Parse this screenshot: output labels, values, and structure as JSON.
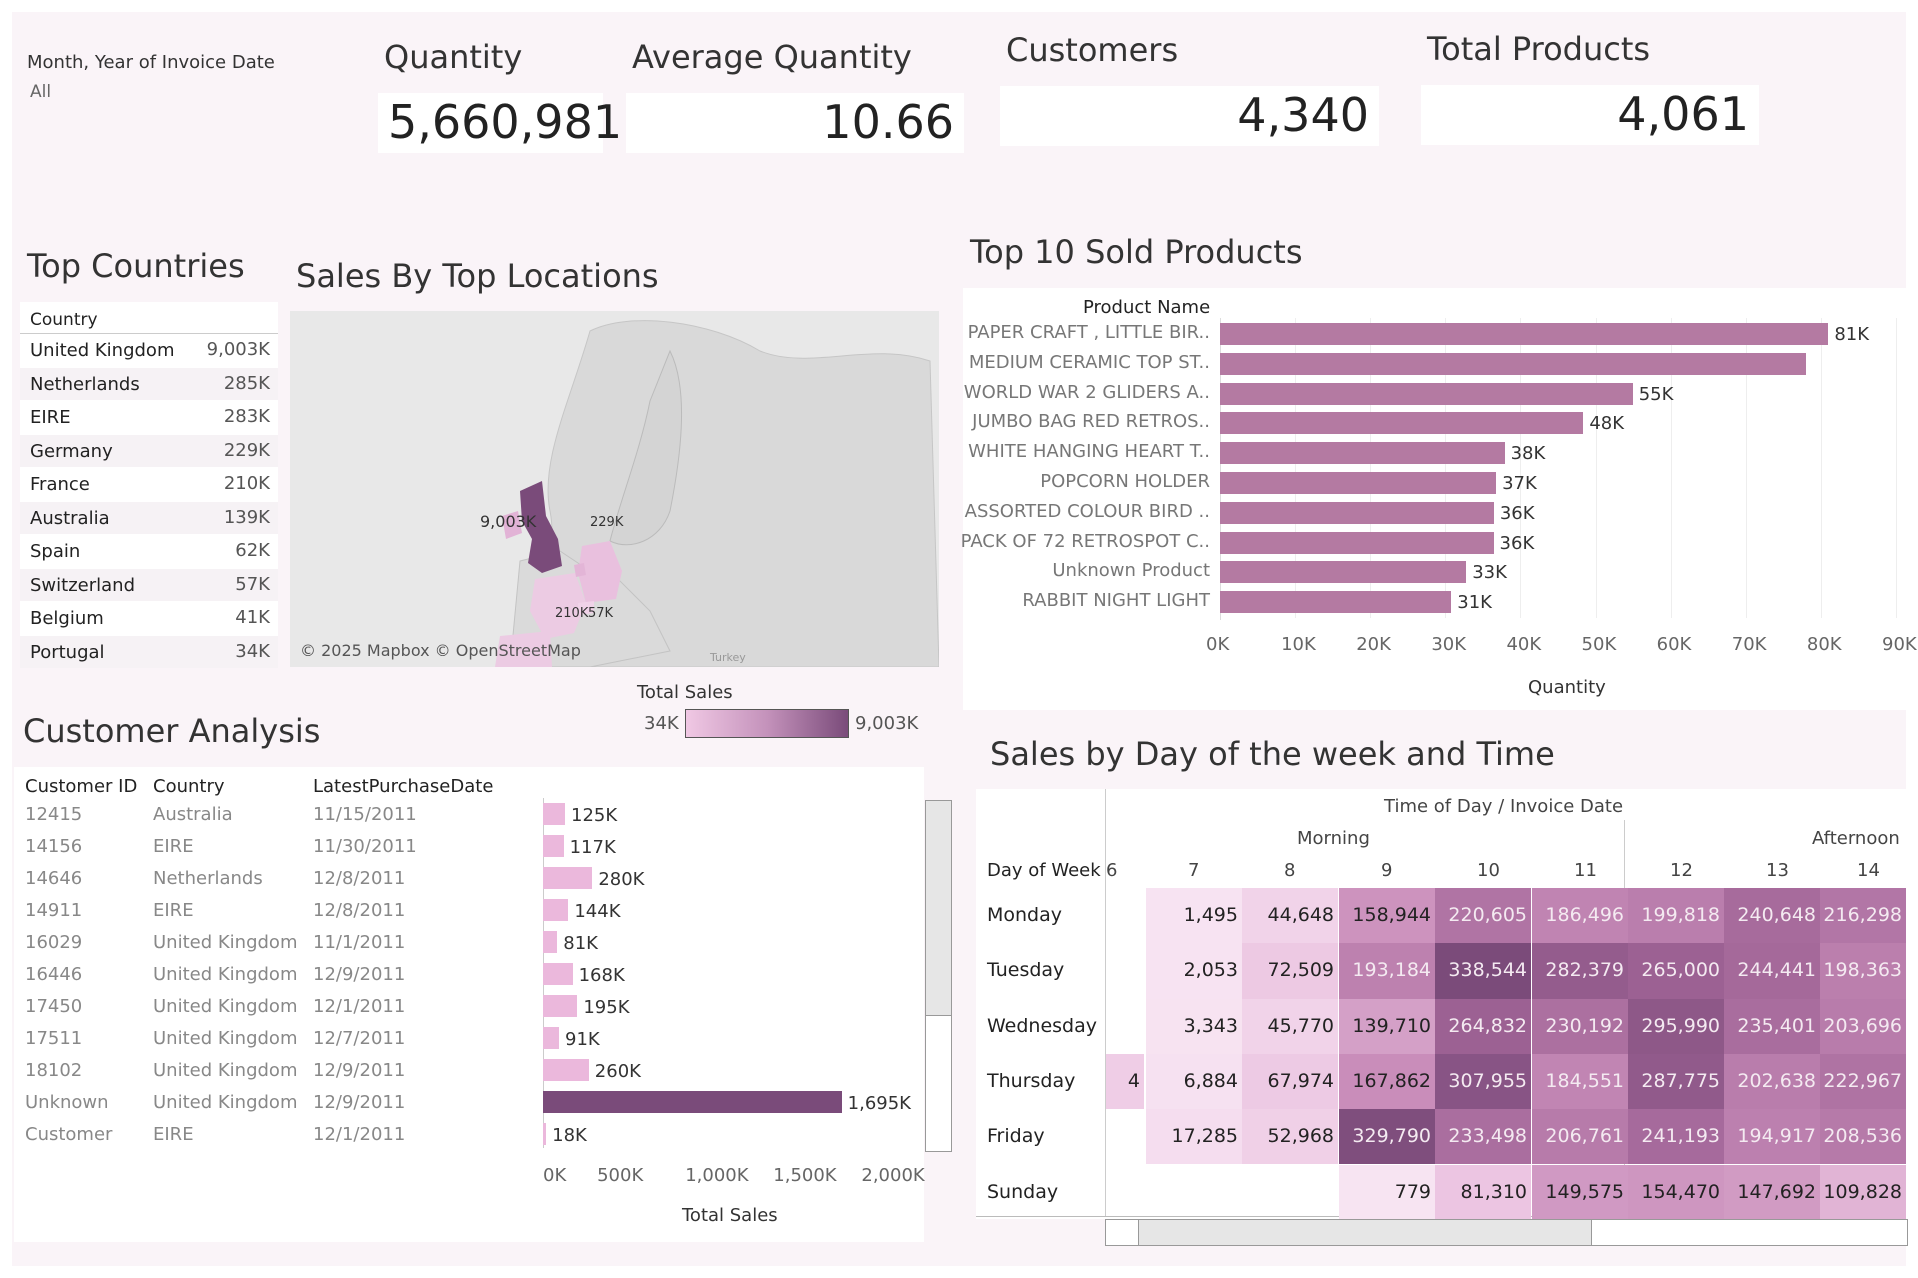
{
  "filter": {
    "label": "Month, Year of Invoice Date",
    "value": "All"
  },
  "kpis": [
    {
      "title": "Quantity",
      "value": "5,660,981"
    },
    {
      "title": "Average Quantity",
      "value": "10.66"
    },
    {
      "title": "Customers",
      "value": "4,340"
    },
    {
      "title": "Total Products",
      "value": "4,061"
    }
  ],
  "top_countries": {
    "title": "Top Countries",
    "header": "Country",
    "rows": [
      {
        "name": "United Kingdom",
        "value": "9,003K"
      },
      {
        "name": "Netherlands",
        "value": "285K"
      },
      {
        "name": "EIRE",
        "value": "283K"
      },
      {
        "name": "Germany",
        "value": "229K"
      },
      {
        "name": "France",
        "value": "210K"
      },
      {
        "name": "Australia",
        "value": "139K"
      },
      {
        "name": "Spain",
        "value": "62K"
      },
      {
        "name": "Switzerland",
        "value": "57K"
      },
      {
        "name": "Belgium",
        "value": "41K"
      },
      {
        "name": "Portugal",
        "value": "34K"
      }
    ]
  },
  "map": {
    "title": "Sales By Top Locations",
    "attribution": "© 2025 Mapbox © OpenStreetMap",
    "turkey_label": "Turkey",
    "labels": [
      "9,003K",
      "229K",
      "210K",
      "57K"
    ],
    "legend": {
      "title": "Total Sales",
      "min": "34K",
      "max": "9,003K",
      "color_min": "#f0c8e4",
      "color_max": "#7a4b7a"
    }
  },
  "colors": {
    "bar": "#b47aa2",
    "dark_bar": "#7a4b7a",
    "light_bar": "#ebb8dc"
  },
  "chart_data": [
    {
      "type": "bar",
      "title": "Top 10 Sold Products",
      "orientation": "horizontal",
      "ylabel": "Product Name",
      "xlabel": "Quantity",
      "xlim": [
        0,
        90000
      ],
      "xticks": [
        "0K",
        "10K",
        "20K",
        "30K",
        "40K",
        "50K",
        "60K",
        "70K",
        "80K",
        "90K"
      ],
      "categories": [
        "PAPER CRAFT , LITTLE BIR..",
        "MEDIUM CERAMIC TOP ST..",
        "WORLD WAR 2 GLIDERS A..",
        "JUMBO BAG RED RETROS..",
        "WHITE HANGING HEART T..",
        "POPCORN HOLDER",
        "ASSORTED COLOUR BIRD ..",
        "PACK OF 72 RETROSPOT C..",
        "Unknown Product",
        "RABBIT NIGHT LIGHT"
      ],
      "values": [
        80995,
        78033,
        54951,
        48375,
        37891,
        36761,
        36461,
        36419,
        32777,
        30788
      ],
      "labels": [
        "81K",
        "",
        "55K",
        "48K",
        "38K",
        "37K",
        "36K",
        "36K",
        "33K",
        "31K"
      ],
      "grid": true
    },
    {
      "type": "table",
      "title": "Customer Analysis",
      "columns": [
        "Customer ID",
        "Country",
        "LatestPurchaseDate"
      ],
      "rows": [
        [
          "12415",
          "Australia",
          "11/15/2011"
        ],
        [
          "14156",
          "EIRE",
          "11/30/2011"
        ],
        [
          "14646",
          "Netherlands",
          "12/8/2011"
        ],
        [
          "14911",
          "EIRE",
          "12/8/2011"
        ],
        [
          "16029",
          "United Kingdom",
          "11/1/2011"
        ],
        [
          "16446",
          "United Kingdom",
          "12/9/2011"
        ],
        [
          "17450",
          "United Kingdom",
          "12/1/2011"
        ],
        [
          "17511",
          "United Kingdom",
          "12/7/2011"
        ],
        [
          "18102",
          "United Kingdom",
          "12/9/2011"
        ],
        [
          "Unknown",
          "United Kingdom",
          "12/9/2011"
        ],
        [
          "Customer",
          "EIRE",
          "12/1/2011"
        ]
      ],
      "bar": {
        "xlabel": "Total Sales",
        "xlim": [
          0,
          2100000
        ],
        "xticks": [
          "0K",
          "500K",
          "1,000K",
          "1,500K",
          "2,000K"
        ],
        "values": [
          125000,
          117000,
          280000,
          144000,
          81000,
          168000,
          195000,
          91000,
          260000,
          1695000,
          18000
        ],
        "labels": [
          "125K",
          "117K",
          "280K",
          "144K",
          "81K",
          "168K",
          "195K",
          "91K",
          "260K",
          "1,695K",
          "18K"
        ]
      }
    },
    {
      "type": "heatmap",
      "title": "Sales by Day of the week and Time",
      "column_header": "Time of Day",
      "column_header_sep": "/",
      "column_header2": "Invoice Date",
      "groups": [
        "Morning",
        "Afternoon"
      ],
      "row_header": "Day of Week",
      "hours": [
        "6",
        "7",
        "8",
        "9",
        "10",
        "11",
        "12",
        "13",
        "14"
      ],
      "days": [
        "Monday",
        "Tuesday",
        "Wednesday",
        "Thursday",
        "Friday",
        "Sunday"
      ],
      "values": [
        [
          null,
          1495,
          44648,
          158944,
          220605,
          186496,
          199818,
          240648,
          216298
        ],
        [
          null,
          2053,
          72509,
          193184,
          338544,
          282379,
          265000,
          244441,
          198363
        ],
        [
          null,
          3343,
          45770,
          139710,
          264832,
          230192,
          295990,
          235401,
          203696
        ],
        [
          4,
          6884,
          67974,
          167862,
          307955,
          184551,
          287775,
          202638,
          222967
        ],
        [
          null,
          17285,
          52968,
          329790,
          233498,
          206761,
          241193,
          194917,
          208536
        ],
        [
          null,
          null,
          null,
          779,
          81310,
          149575,
          154470,
          147692,
          109828
        ]
      ],
      "labels": [
        [
          "",
          "1,495",
          "44,648",
          "158,944",
          "220,605",
          "186,496",
          "199,818",
          "240,648",
          "216,298"
        ],
        [
          "",
          "2,053",
          "72,509",
          "193,184",
          "338,544",
          "282,379",
          "265,000",
          "244,441",
          "198,363"
        ],
        [
          "",
          "3,343",
          "45,770",
          "139,710",
          "264,832",
          "230,192",
          "295,990",
          "235,401",
          "203,696"
        ],
        [
          "4",
          "6,884",
          "67,974",
          "167,862",
          "307,955",
          "184,551",
          "287,775",
          "202,638",
          "222,967"
        ],
        [
          "",
          "17,285",
          "52,968",
          "329,790",
          "233,498",
          "206,761",
          "241,193",
          "194,917",
          "208,536"
        ],
        [
          "",
          "",
          "",
          "779",
          "81,310",
          "149,575",
          "154,470",
          "147,692",
          "109,828"
        ]
      ]
    }
  ]
}
